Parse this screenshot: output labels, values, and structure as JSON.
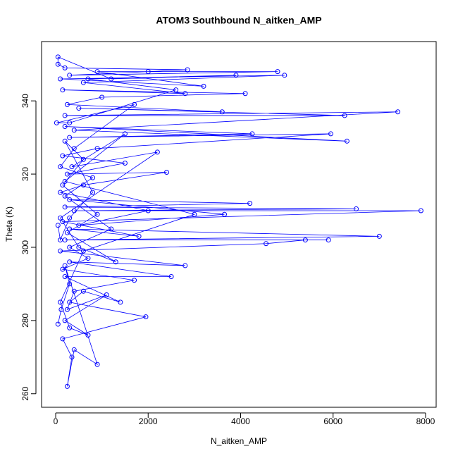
{
  "chart_data": {
    "type": "line",
    "markers": true,
    "title": "ATOM3 Southbound N_aitken_AMP",
    "xlabel": "N_aitken_AMP",
    "ylabel": "Theta (K)",
    "color": "#0000ff",
    "x": [
      50,
      120,
      300,
      200,
      900,
      400,
      250,
      350,
      150,
      1950,
      300,
      600,
      1400,
      200,
      2500,
      300,
      2800,
      100,
      4550,
      5400,
      5900,
      200,
      7000,
      300,
      1800,
      150,
      7900,
      400,
      6500,
      200,
      4200,
      300,
      3650,
      500,
      2000,
      100,
      600,
      2400,
      250,
      1500,
      150,
      900,
      5950,
      300,
      4250,
      200,
      6300,
      400,
      7400,
      200,
      6250,
      500,
      3600,
      250,
      1000,
      4100,
      150,
      2800,
      600,
      4950,
      100,
      3200,
      900,
      4800,
      300,
      2000,
      2850,
      200,
      50,
      50,
      1200,
      3900,
      700,
      2600,
      300,
      20,
      1700,
      400,
      100,
      800,
      200,
      1200,
      300,
      700,
      150,
      1700,
      400,
      250,
      1100,
      200,
      700,
      300,
      100,
      600,
      3000,
      200,
      1500,
      350,
      2200,
      100,
      500,
      1300,
      250,
      900,
      150,
      600,
      200,
      800,
      300,
      100,
      50
    ],
    "values": [
      279,
      283,
      290,
      295,
      268,
      272,
      262,
      270,
      275,
      281,
      285,
      288,
      285,
      292,
      292,
      296,
      295,
      299,
      301,
      302,
      302,
      302,
      303,
      305,
      303,
      307,
      310,
      310,
      310.5,
      311,
      312,
      313,
      309,
      306,
      310,
      315,
      317,
      320.5,
      320,
      323,
      325,
      327,
      331,
      330,
      331,
      333,
      329,
      332,
      337,
      336,
      336,
      338,
      337,
      339,
      341,
      342,
      343,
      342,
      345,
      347,
      346,
      344,
      348,
      348,
      347,
      348,
      348.5,
      349,
      350,
      352,
      346,
      347,
      346,
      343,
      334,
      334,
      339,
      327,
      322,
      319,
      314,
      305,
      300,
      297,
      294,
      291,
      288,
      283,
      287,
      280,
      276,
      278,
      285,
      299,
      309,
      318,
      331,
      322,
      326,
      308,
      300,
      296,
      304,
      309,
      317,
      324,
      329,
      315,
      308,
      302,
      306
    ],
    "xlim": [
      -305,
      8229
    ],
    "ylim": [
      256.3,
      356.2
    ],
    "xticks": [
      0,
      2000,
      4000,
      6000,
      8000
    ],
    "yticks": [
      260,
      280,
      300,
      320,
      340
    ]
  }
}
